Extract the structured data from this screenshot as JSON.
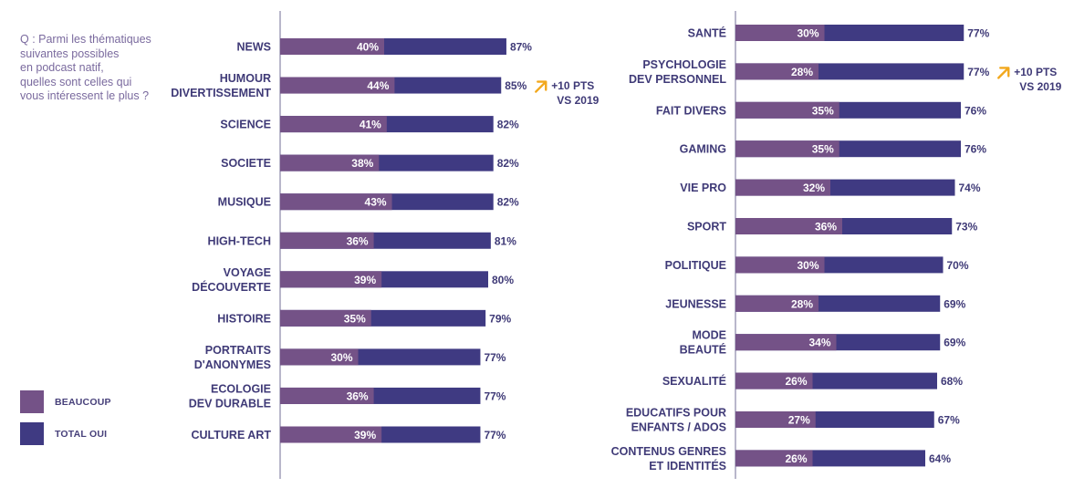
{
  "question": "Q : Parmi les thématiques suivantes possibles en podcast natif, quelles sont celles qui vous intéressent le plus ?",
  "colors": {
    "beaucoup": "#745287",
    "total": "#3f3a82",
    "axis": "#8a87a8",
    "arrow": "#f2a81d",
    "label": "#3f3a77"
  },
  "legend": [
    {
      "label": "BEAUCOUP",
      "color": "#745287"
    },
    {
      "label": "TOTAL OUI",
      "color": "#3f3a82"
    }
  ],
  "chart_data": [
    {
      "type": "bar",
      "orientation": "horizontal",
      "stacked_overlay": true,
      "xlim": [
        0,
        100
      ],
      "categories": [
        "NEWS",
        "HUMOUR\nDIVERTISSEMENT",
        "SCIENCE",
        "SOCIETE",
        "MUSIQUE",
        "HIGH-TECH",
        "VOYAGE\nDÉCOUVERTE",
        "HISTOIRE",
        "PORTRAITS\nD'ANONYMES",
        "ECOLOGIE\nDEV DURABLE",
        "CULTURE ART"
      ],
      "series": [
        {
          "name": "BEAUCOUP",
          "values": [
            40,
            44,
            41,
            38,
            43,
            36,
            39,
            35,
            30,
            36,
            39
          ]
        },
        {
          "name": "TOTAL OUI",
          "values": [
            87,
            85,
            82,
            82,
            82,
            81,
            80,
            79,
            77,
            77,
            77
          ]
        }
      ],
      "annotations": [
        {
          "category": "HUMOUR\nDIVERTISSEMENT",
          "text": [
            "+10 PTS",
            "VS 2019"
          ]
        }
      ]
    },
    {
      "type": "bar",
      "orientation": "horizontal",
      "stacked_overlay": true,
      "xlim": [
        0,
        100
      ],
      "categories": [
        "SANTÉ",
        "PSYCHOLOGIE\nDEV PERSONNEL",
        "FAIT DIVERS",
        "GAMING",
        "VIE PRO",
        "SPORT",
        "POLITIQUE",
        "JEUNESSE",
        "MODE\nBEAUTÉ",
        "SEXUALITÉ",
        "EDUCATIFS POUR\nENFANTS / ADOS",
        "CONTENUS GENRES\nET IDENTITÉS"
      ],
      "series": [
        {
          "name": "BEAUCOUP",
          "values": [
            30,
            28,
            35,
            35,
            32,
            36,
            30,
            28,
            34,
            26,
            27,
            26
          ]
        },
        {
          "name": "TOTAL OUI",
          "values": [
            77,
            77,
            76,
            76,
            74,
            73,
            70,
            69,
            69,
            68,
            67,
            64
          ]
        }
      ],
      "annotations": [
        {
          "category": "PSYCHOLOGIE\nDEV PERSONNEL",
          "text": [
            "+10 PTS",
            "VS 2019"
          ]
        }
      ]
    }
  ]
}
